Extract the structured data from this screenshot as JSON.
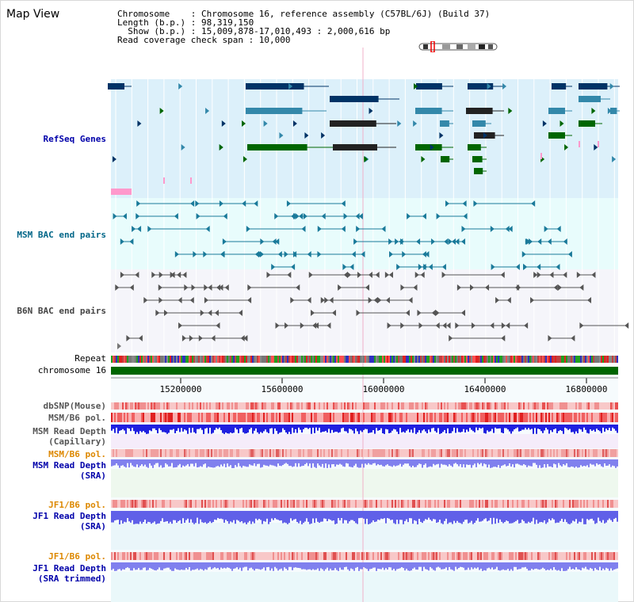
{
  "title": "Map View",
  "info": {
    "line1": "Chromosome    : Chromosome 16, reference assembly (C57BL/6J) (Build 37)",
    "line2": "Length (b.p.) : 98,319,150",
    "line3": "  Show (b.p.) : 15,009,878-17,010,493 : 2,000,616 bp",
    "line4": "Read coverage check span : 10,000"
  },
  "tracks": {
    "refseq": "RefSeq Genes",
    "msm_bac": "MSM BAC end pairs",
    "b6n_bac": "B6N BAC end pairs",
    "repeat": "Repeat",
    "chromosome": "chromosome 16",
    "dbsnp": "dbSNP(Mouse)",
    "msm_b6_pol_1": "MSM/B6 pol.",
    "msm_rd_cap_1": "MSM Read Depth",
    "msm_rd_cap_2": "(Capillary)",
    "msm_b6_pol_2": "MSM/B6 pol.",
    "msm_rd_sra_1": "MSM Read Depth",
    "msm_rd_sra_2": "(SRA)",
    "jf1_b6_pol_1": "JF1/B6 pol.",
    "jf1_rd_sra_1": "JF1 Read Depth",
    "jf1_rd_sra_2": "(SRA)",
    "jf1_b6_pol_2": "JF1/B6 pol.",
    "jf1_rd_trim_1": "JF1 Read Depth",
    "jf1_rd_trim_2": "(SRA trimmed)"
  },
  "axis": {
    "ticks": [
      "15200000",
      "15600000",
      "16000000",
      "16400000",
      "16800000"
    ]
  },
  "colors": {
    "refseq_label": "#0000aa",
    "msm_label": "#006688",
    "b6n_label": "#444444",
    "pol_label": "#dd8800",
    "depth_label": "#0000aa",
    "gene_dark": "#003366",
    "gene_mid": "#3388aa",
    "gene_green": "#006600",
    "chrom_green": "#006600"
  }
}
